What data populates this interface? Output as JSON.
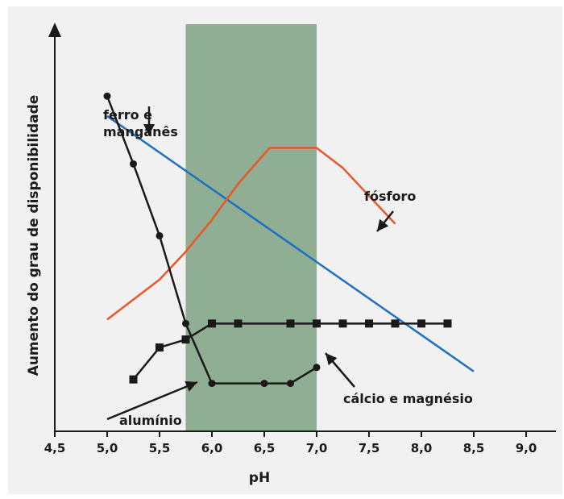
{
  "chart_data": {
    "type": "line",
    "xlabel": "pH",
    "ylabel": "Aumento do grau de disponibilidade",
    "xlim": [
      4.5,
      9.3
    ],
    "x_ticks": [
      "4,5",
      "5,0",
      "5,5",
      "6,0",
      "6,5",
      "7,0",
      "7,5",
      "8,0",
      "8,5",
      "9,0"
    ],
    "x_tick_values": [
      4.5,
      5.0,
      5.5,
      6.0,
      6.5,
      7.0,
      7.5,
      8.0,
      8.5,
      9.0
    ],
    "ylim": [
      0,
      100
    ],
    "grid": false,
    "highlight_band": {
      "from": 5.75,
      "to": 7.0,
      "color": "#8fae93"
    },
    "series": [
      {
        "key": "ferro",
        "color": "#1f6fc0",
        "marker": "none",
        "x": [
          5.0,
          8.5
        ],
        "y": [
          79,
          15
        ]
      },
      {
        "key": "fosforo",
        "color": "#e8562a",
        "marker": "none",
        "x": [
          5.0,
          5.25,
          5.5,
          5.75,
          6.0,
          6.25,
          6.55,
          7.0,
          7.25,
          7.75
        ],
        "y": [
          28,
          33,
          38,
          45,
          53,
          62,
          71,
          71,
          66,
          52
        ]
      },
      {
        "key": "aluminio",
        "color": "#1a1a1a",
        "marker": "circle",
        "x": [
          5.0,
          5.25,
          5.5,
          5.75,
          6.0,
          6.5,
          6.75,
          7.0
        ],
        "y": [
          84,
          67,
          49,
          27,
          12,
          12,
          12,
          16
        ]
      },
      {
        "key": "calcio",
        "color": "#1a1a1a",
        "marker": "square",
        "x": [
          5.25,
          5.5,
          5.75,
          6.0,
          6.25,
          6.75,
          7.0,
          7.25,
          7.5,
          7.75,
          8.0,
          8.25
        ],
        "y": [
          13,
          21,
          23,
          27,
          27,
          27,
          27,
          27,
          27,
          27,
          27,
          27
        ]
      }
    ],
    "annotations": [
      {
        "key": "ferro",
        "lines": [
          "ferro e",
          "manganês"
        ]
      },
      {
        "key": "fosforo",
        "lines": [
          "fósforo"
        ]
      },
      {
        "key": "aluminio",
        "lines": [
          "alumínio"
        ]
      },
      {
        "key": "calcio",
        "lines": [
          "cálcio e magnésio"
        ]
      }
    ]
  }
}
